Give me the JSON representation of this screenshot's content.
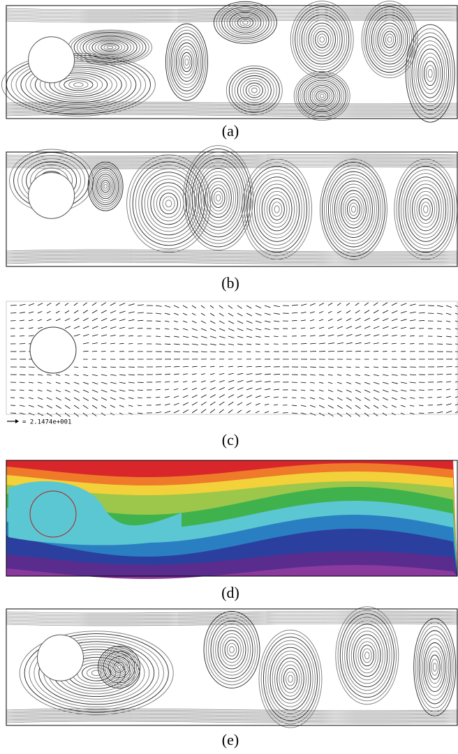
{
  "panels": [
    {
      "caption": "(a)"
    },
    {
      "caption": "(b)"
    },
    {
      "caption": "(c)",
      "vector_scale": "= 2.1474e+001"
    },
    {
      "caption": "(d)"
    },
    {
      "caption": "(e)"
    }
  ]
}
